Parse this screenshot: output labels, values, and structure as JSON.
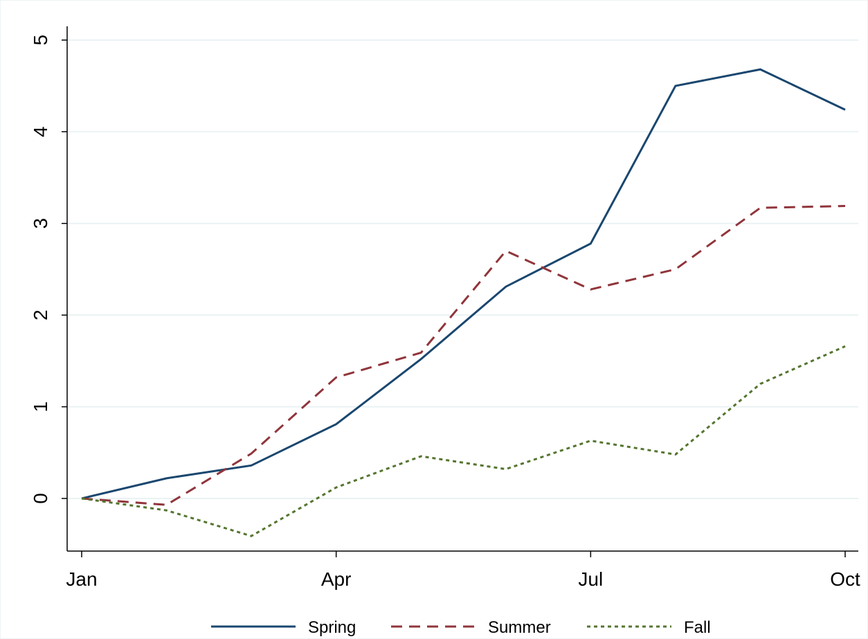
{
  "chart_data": {
    "type": "line",
    "categories": [
      "Jan",
      null,
      null,
      "Apr",
      null,
      null,
      "Jul",
      null,
      null,
      "Oct"
    ],
    "series": [
      {
        "name": "Spring",
        "color": "#1a476f",
        "dash": "",
        "values": [
          0,
          0.22,
          0.36,
          0.81,
          1.52,
          2.31,
          2.78,
          4.5,
          4.68,
          4.24
        ]
      },
      {
        "name": "Summer",
        "color": "#90353b",
        "dash": "16,10",
        "values": [
          0,
          -0.07,
          0.49,
          1.32,
          1.59,
          2.7,
          2.28,
          2.5,
          3.17,
          3.19
        ]
      },
      {
        "name": "Fall",
        "color": "#55752f",
        "dash": "5,5",
        "values": [
          0,
          -0.13,
          -0.41,
          0.12,
          0.46,
          0.32,
          0.63,
          0.48,
          1.25,
          1.66
        ]
      }
    ],
    "ylim": [
      -0.574,
      5.15
    ],
    "yticks": [
      0,
      1,
      2,
      3,
      4,
      5
    ],
    "grid": true,
    "legend": "bottom"
  }
}
